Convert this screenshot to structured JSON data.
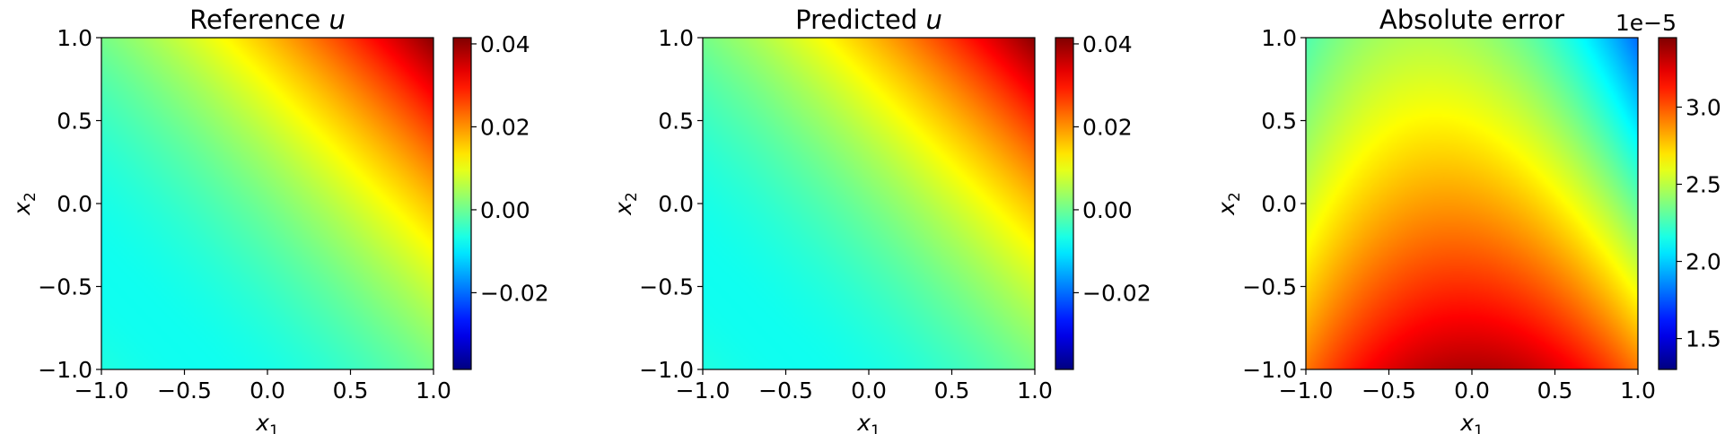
{
  "chart_data": [
    {
      "type": "heatmap",
      "title": "Reference",
      "title_var": "u",
      "xlabel": "x",
      "xlabel_sub": "1",
      "ylabel": "x",
      "ylabel_sub": "2",
      "xlim": [
        -1.0,
        1.0
      ],
      "ylim": [
        -1.0,
        1.0
      ],
      "xticks": [
        -1.0,
        -0.5,
        0.0,
        0.5,
        1.0
      ],
      "yticks": [
        -1.0,
        -0.5,
        0.0,
        0.5,
        1.0
      ],
      "xtick_labels": [
        "−1.0",
        "−0.5",
        "0.0",
        "0.5",
        "1.0"
      ],
      "ytick_labels": [
        "−1.0",
        "−0.5",
        "0.0",
        "0.5",
        "1.0"
      ],
      "colormap": "jet",
      "field": "solution",
      "grid": false,
      "colorbar": {
        "vmin": -0.0385,
        "vmax": 0.0415,
        "ticks": [
          -0.02,
          0.0,
          0.02,
          0.04
        ],
        "tick_labels": [
          "−0.02",
          "0.00",
          "0.02",
          "0.04"
        ],
        "offset_label": ""
      }
    },
    {
      "type": "heatmap",
      "title": "Predicted",
      "title_var": "u",
      "xlabel": "x",
      "xlabel_sub": "1",
      "ylabel": "x",
      "ylabel_sub": "2",
      "xlim": [
        -1.0,
        1.0
      ],
      "ylim": [
        -1.0,
        1.0
      ],
      "xticks": [
        -1.0,
        -0.5,
        0.0,
        0.5,
        1.0
      ],
      "yticks": [
        -1.0,
        -0.5,
        0.0,
        0.5,
        1.0
      ],
      "xtick_labels": [
        "−1.0",
        "−0.5",
        "0.0",
        "0.5",
        "1.0"
      ],
      "ytick_labels": [
        "−1.0",
        "−0.5",
        "0.0",
        "0.5",
        "1.0"
      ],
      "colormap": "jet",
      "field": "solution",
      "grid": false,
      "colorbar": {
        "vmin": -0.0385,
        "vmax": 0.0415,
        "ticks": [
          -0.02,
          0.0,
          0.02,
          0.04
        ],
        "tick_labels": [
          "−0.02",
          "0.00",
          "0.02",
          "0.04"
        ],
        "offset_label": ""
      }
    },
    {
      "type": "heatmap",
      "title": "Absolute error",
      "title_var": "",
      "xlabel": "x",
      "xlabel_sub": "1",
      "ylabel": "x",
      "ylabel_sub": "2",
      "xlim": [
        -1.0,
        1.0
      ],
      "ylim": [
        -1.0,
        1.0
      ],
      "xticks": [
        -1.0,
        -0.5,
        0.0,
        0.5,
        1.0
      ],
      "yticks": [
        -1.0,
        -0.5,
        0.0,
        0.5,
        1.0
      ],
      "xtick_labels": [
        "−1.0",
        "−0.5",
        "0.0",
        "0.5",
        "1.0"
      ],
      "ytick_labels": [
        "−1.0",
        "−0.5",
        "0.0",
        "0.5",
        "1.0"
      ],
      "colormap": "jet",
      "field": "error",
      "grid": false,
      "colorbar": {
        "vmin": 1.3,
        "vmax": 3.45,
        "ticks": [
          1.5,
          2.0,
          2.5,
          3.0
        ],
        "tick_labels": [
          "1.5",
          "2.0",
          "2.5",
          "3.0"
        ],
        "offset_label": "1e−5"
      }
    }
  ]
}
